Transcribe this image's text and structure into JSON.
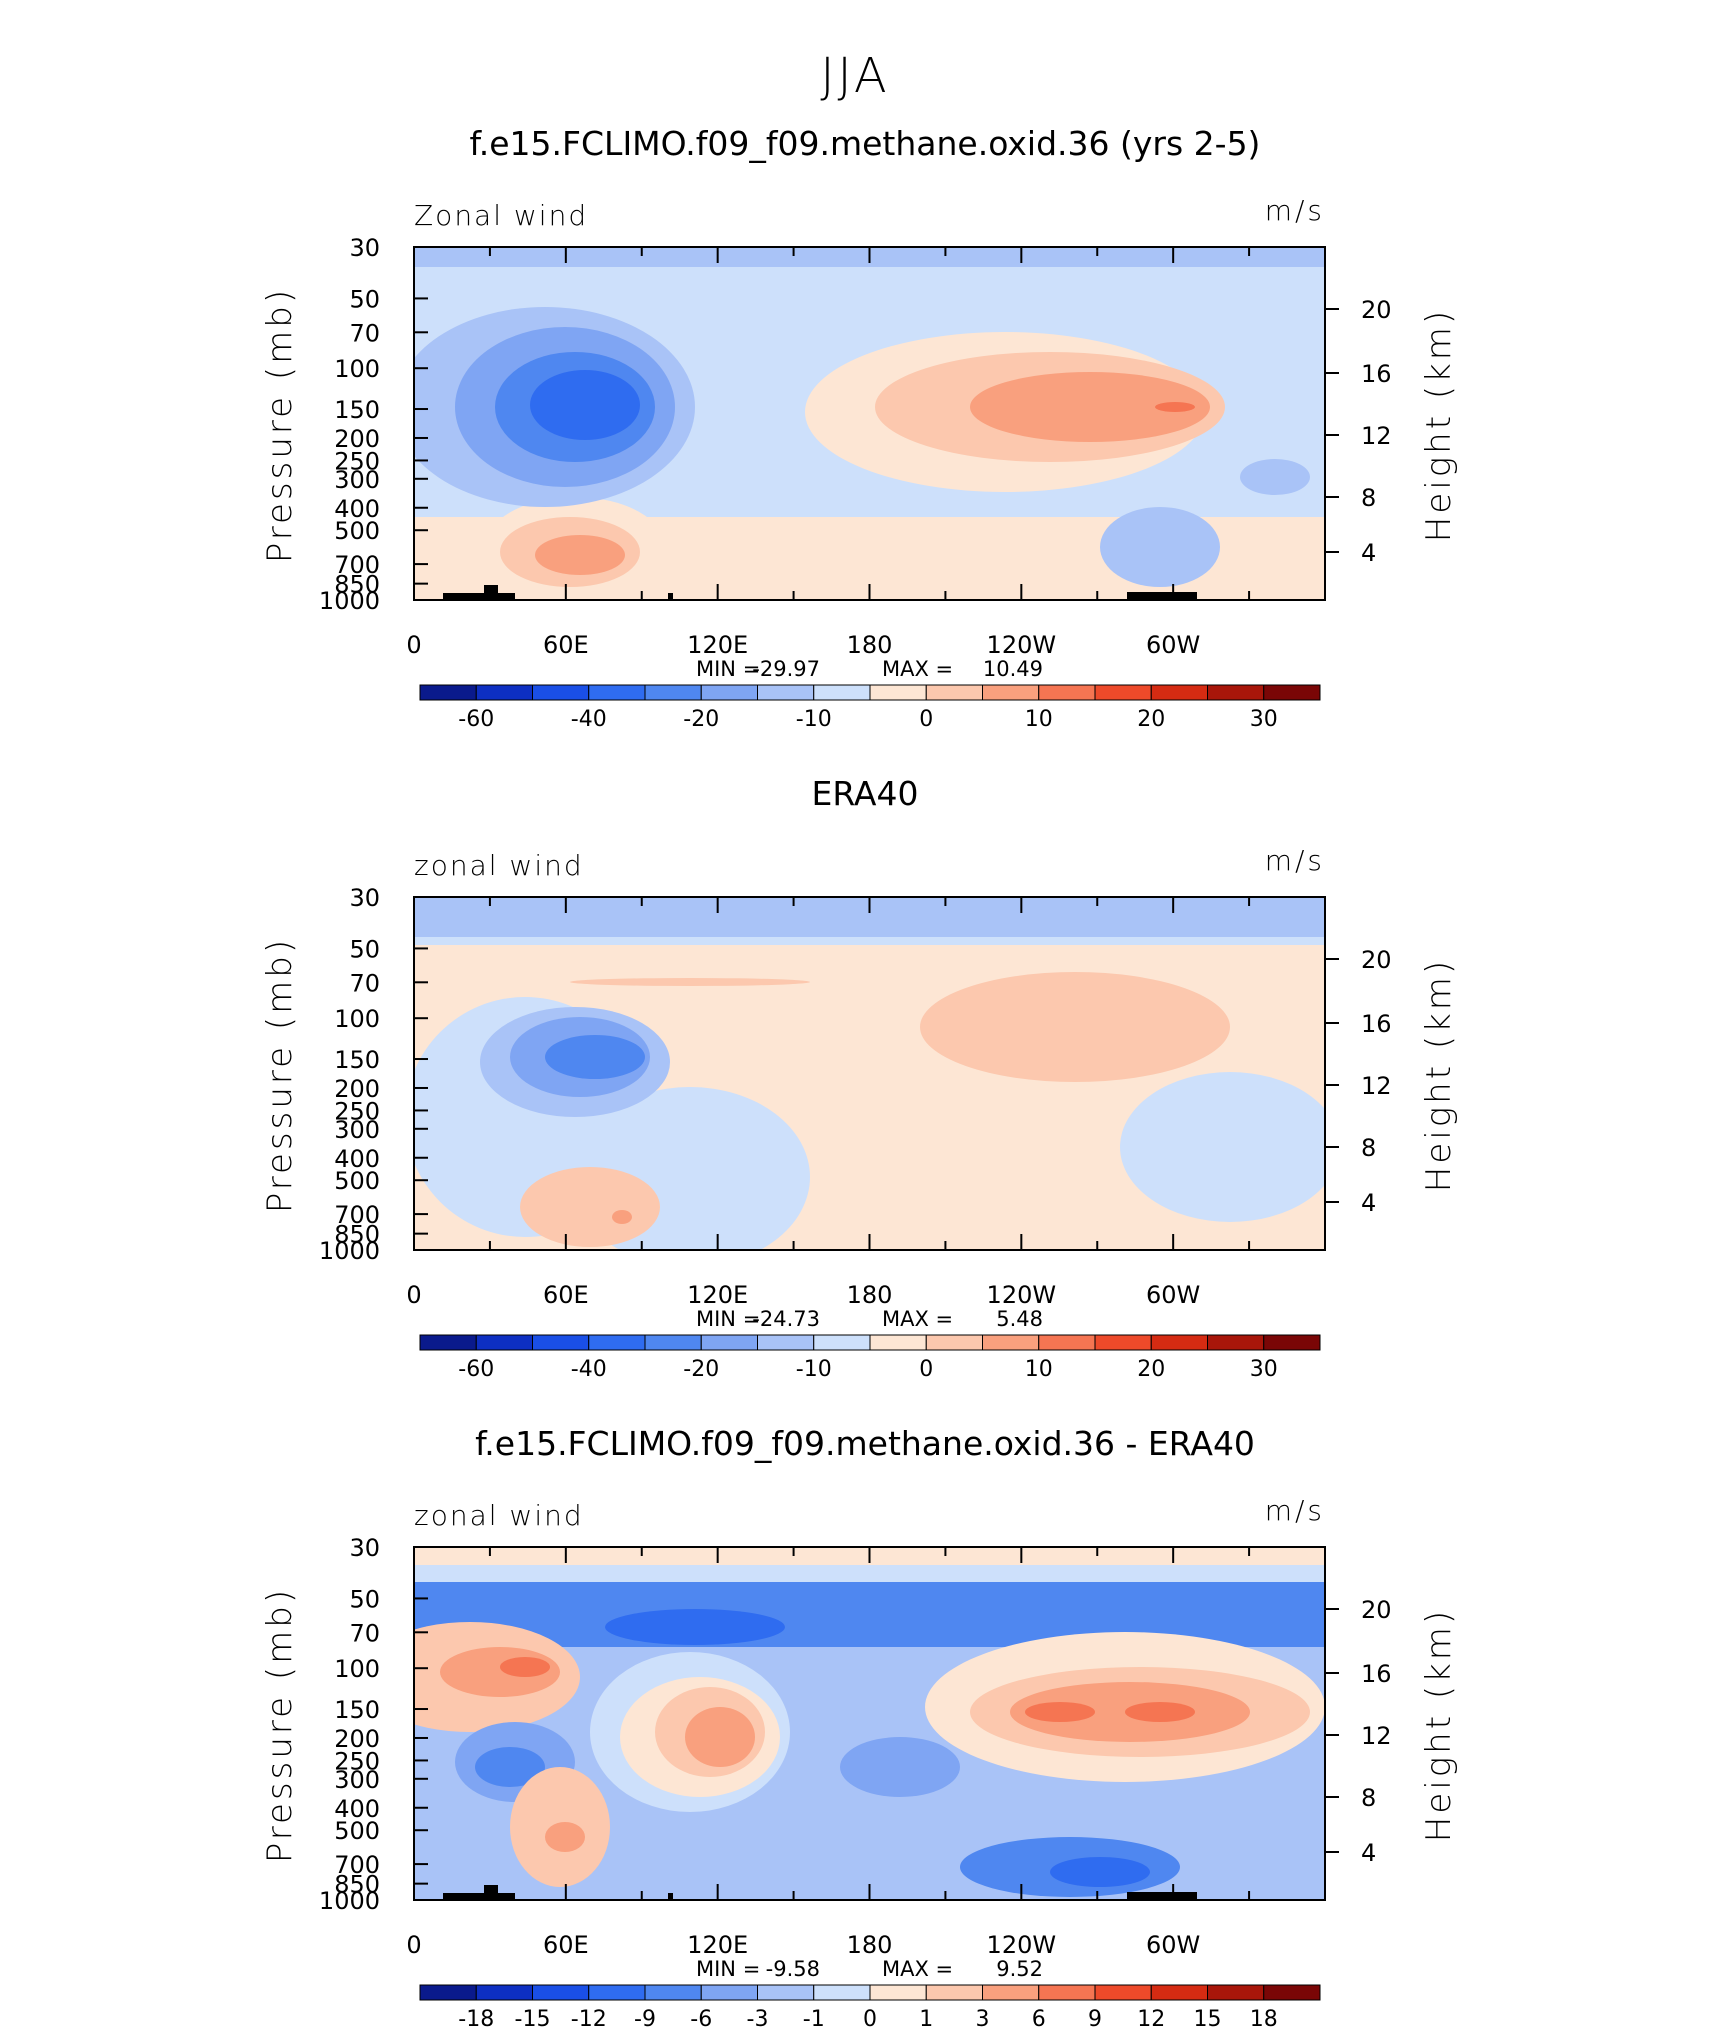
{
  "figure": {
    "title": "JJA"
  },
  "colors": {
    "blue_scale": [
      "#0a1a8c",
      "#0d2fc2",
      "#1a4fe6",
      "#2f6cf0",
      "#4f87f0",
      "#7fa5f3",
      "#a9c3f7",
      "#cde0fb"
    ],
    "red_scale": [
      "#fde6d4",
      "#fcc8ae",
      "#f9a07e",
      "#f57552",
      "#ed4a2a",
      "#d52b12",
      "#a8160a",
      "#7a0606"
    ],
    "topography": "#000000"
  },
  "chart_data": [
    {
      "type": "heatmap",
      "title": "f.e15.FCLIMO.f09_f09.methane.oxid.36 (yrs 2-5)",
      "field_label": "Zonal wind",
      "units": "m/s",
      "ylabel": "Pressure (mb)",
      "ylabel_right": "Height (km)",
      "x_ticks": [
        "0",
        "60E",
        "120E",
        "180",
        "120W",
        "60W"
      ],
      "y_ticks": [
        "30",
        "50",
        "70",
        "100",
        "150",
        "200",
        "250",
        "300",
        "400",
        "500",
        "700",
        "850",
        "1000"
      ],
      "y_right_ticks": [
        "20",
        "16",
        "12",
        "8",
        "4"
      ],
      "stats": {
        "min_label": "MIN =",
        "min": "-29.97",
        "max_label": "MAX =",
        "max": "10.49"
      },
      "colorbar_labels": [
        "-60",
        "-40",
        "-20",
        "-10",
        "0",
        "10",
        "20",
        "30"
      ],
      "features": [
        {
          "lon": 75,
          "p": 150,
          "value": -25
        },
        {
          "lon": 160,
          "p": 150,
          "value": 7
        },
        {
          "lon": 300,
          "p": 150,
          "value": 10
        }
      ]
    },
    {
      "type": "heatmap",
      "title": "ERA40",
      "field_label": "zonal wind",
      "units": "m/s",
      "ylabel": "Pressure (mb)",
      "ylabel_right": "Height (km)",
      "x_ticks": [
        "0",
        "60E",
        "120E",
        "180",
        "120W",
        "60W"
      ],
      "y_ticks": [
        "30",
        "50",
        "70",
        "100",
        "150",
        "200",
        "250",
        "300",
        "400",
        "500",
        "700",
        "850",
        "1000"
      ],
      "y_right_ticks": [
        "20",
        "16",
        "12",
        "8",
        "4"
      ],
      "stats": {
        "min_label": "MIN =",
        "min": "-24.73",
        "max_label": "MAX =",
        "max": "5.48"
      },
      "colorbar_labels": [
        "-60",
        "-40",
        "-20",
        "-10",
        "0",
        "10",
        "20",
        "30"
      ],
      "features": [
        {
          "lon": 85,
          "p": 150,
          "value": -22
        },
        {
          "lon": 310,
          "p": 130,
          "value": 5
        }
      ]
    },
    {
      "type": "heatmap",
      "title": "f.e15.FCLIMO.f09_f09.methane.oxid.36 - ERA40",
      "field_label": "zonal wind",
      "units": "m/s",
      "ylabel": "Pressure (mb)",
      "ylabel_right": "Height (km)",
      "x_ticks": [
        "0",
        "60E",
        "120E",
        "180",
        "120W",
        "60W"
      ],
      "y_ticks": [
        "30",
        "50",
        "70",
        "100",
        "150",
        "200",
        "250",
        "300",
        "400",
        "500",
        "700",
        "850",
        "1000"
      ],
      "y_right_ticks": [
        "20",
        "16",
        "12",
        "8",
        "4"
      ],
      "stats": {
        "min_label": "MIN =",
        "min": "-9.58",
        "max_label": "MAX =",
        "max": "9.52"
      },
      "colorbar_labels": [
        "-18",
        "-15",
        "-12",
        "-9",
        "-6",
        "-3",
        "-1",
        "0",
        "1",
        "3",
        "6",
        "9",
        "12",
        "15",
        "18"
      ],
      "features": [
        {
          "lon": 45,
          "p": 100,
          "value": 9
        },
        {
          "lon": 120,
          "p": 160,
          "value": 6
        },
        {
          "lon": 250,
          "p": 150,
          "value": 9
        },
        {
          "lon": 310,
          "p": 150,
          "value": 8
        },
        {
          "lon": 100,
          "p": 70,
          "value": -6
        },
        {
          "lon": 200,
          "p": 200,
          "value": -5
        },
        {
          "lon": 280,
          "p": 700,
          "value": -9
        }
      ]
    }
  ]
}
